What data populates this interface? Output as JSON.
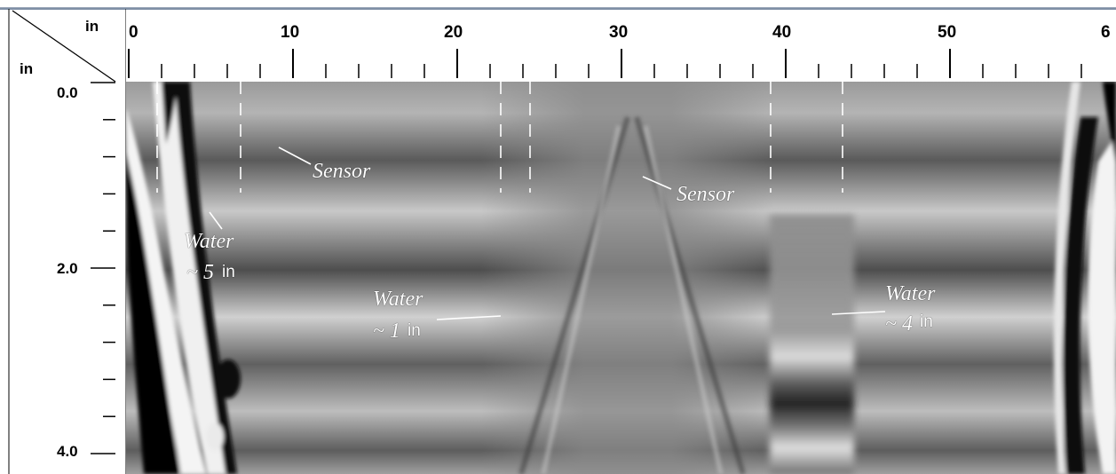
{
  "axes": {
    "top_unit": "in",
    "left_unit": "in",
    "x_ticks": [
      "0",
      "10",
      "20",
      "30",
      "40",
      "50",
      "6"
    ],
    "y_ticks": [
      "0.0",
      "2.0",
      "4.0"
    ]
  },
  "annotations": {
    "sensor_left": "Sensor",
    "sensor_right": "Sensor",
    "water_left": "Water",
    "water_left_depth": "~ 5",
    "water_left_unit": "in",
    "water_mid": "Water",
    "water_mid_depth": "~ 1",
    "water_mid_unit": "in",
    "water_right": "Water",
    "water_right_depth": "~ 4",
    "water_right_unit": "in"
  },
  "colors": {
    "frame": "#9ba7b8",
    "scan_mid_gray": "#8a8a8a",
    "annotation": "#ffffff"
  }
}
